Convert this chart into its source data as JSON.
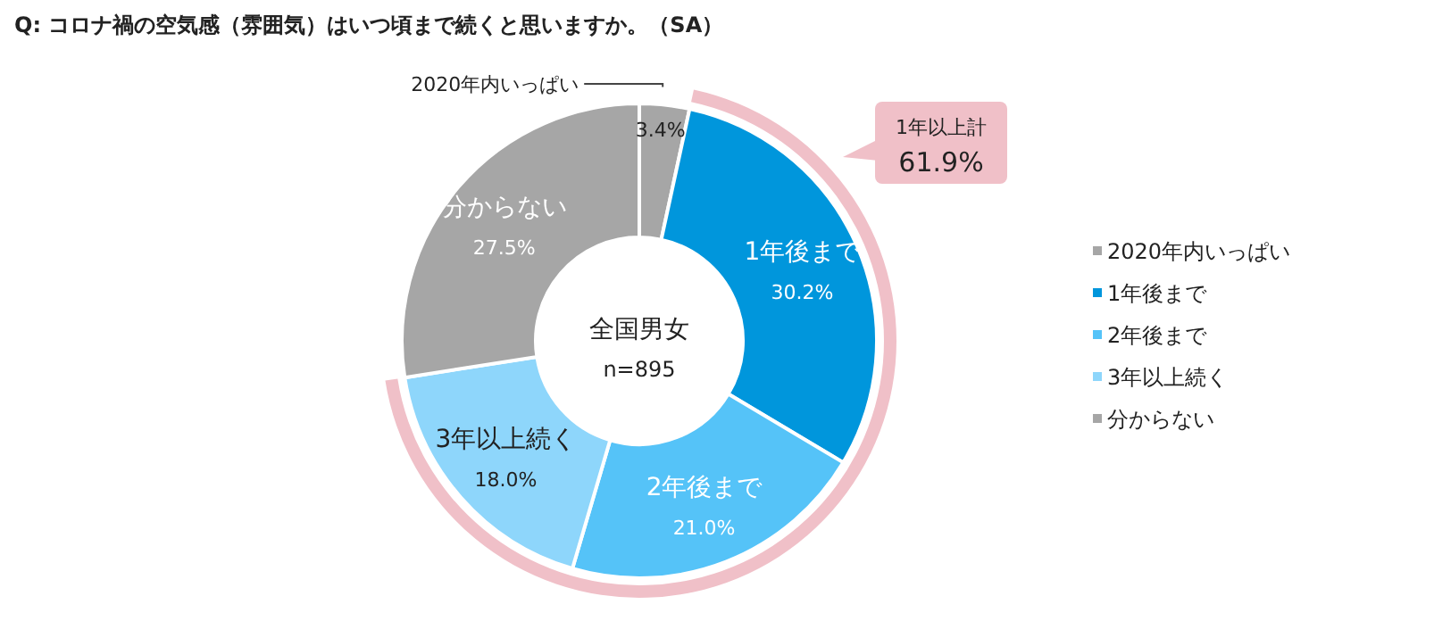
{
  "chart_data": {
    "type": "donut",
    "title": "Q:  コロナ禍の空気感（雰囲気）はいつ頃まで続くと思いますか。（SA）",
    "categories": [
      "2020年内いっぱい",
      "1年後まで",
      "2年後まで",
      "3年以上続く",
      "分からない"
    ],
    "values": [
      3.4,
      30.2,
      21.0,
      18.0,
      27.5
    ],
    "colors": [
      "#a6a6a6",
      "#0096dc",
      "#55c3f8",
      "#8ed6fb",
      "#a6a6a6"
    ],
    "value_labels": [
      "3.4%",
      "30.2%",
      "21.0%",
      "18.0%",
      "27.5%"
    ],
    "annotations": [
      "全国男女",
      "n=895",
      "1年以上計",
      "61.9%"
    ],
    "legend": "right"
  }
}
